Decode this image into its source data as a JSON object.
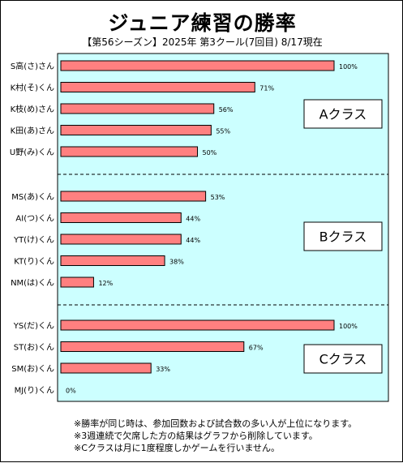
{
  "title": "ジュニア練習の勝率",
  "subtitle": "【第56シーズン】2025年 第3クール(7回目) 8/17現在",
  "colors": {
    "plot_bg": "#ccffff",
    "bar_fill": "#ff8080",
    "bar_stroke": "#000000",
    "divider": "#000000"
  },
  "chart_data": {
    "type": "bar",
    "orientation": "horizontal",
    "xlim": [
      0,
      100
    ],
    "value_suffix": "%",
    "grid": false,
    "groups": [
      {
        "label": "Aクラス",
        "items": [
          {
            "name": "S高(さ)さん",
            "value": 100
          },
          {
            "name": "K村(そ)くん",
            "value": 71
          },
          {
            "name": "K枝(め)さん",
            "value": 56
          },
          {
            "name": "K田(あ)さん",
            "value": 55
          },
          {
            "name": "U野(み)くん",
            "value": 50
          }
        ]
      },
      {
        "label": "Bクラス",
        "items": [
          {
            "name": "MS(あ)くん",
            "value": 53
          },
          {
            "name": "AI(つ)くん",
            "value": 44
          },
          {
            "name": "YT(け)くん",
            "value": 44
          },
          {
            "name": "KT(り)くん",
            "value": 38
          },
          {
            "name": "NM(は)くん",
            "value": 12
          }
        ]
      },
      {
        "label": "Cクラス",
        "items": [
          {
            "name": "YS(だ)くん",
            "value": 100
          },
          {
            "name": "ST(お)くん",
            "value": 67
          },
          {
            "name": "SM(お)くん",
            "value": 33
          },
          {
            "name": "MJ(り)くん",
            "value": 0
          }
        ]
      }
    ]
  },
  "notes": [
    "※勝率が同じ時は、参加回数および試合数の多い人が上位になります。",
    "※3週連続で欠席した方の結果はグラフから削除しています。",
    "※Cクラスは月に1度程度しかゲームを行いません。"
  ]
}
